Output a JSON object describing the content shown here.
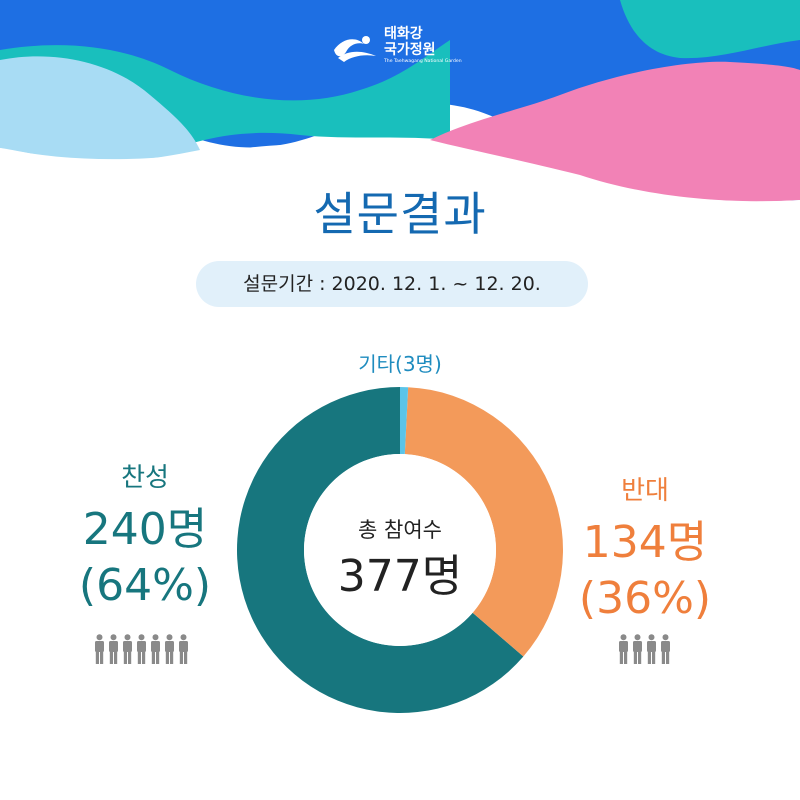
{
  "brand": {
    "name_line1": "태화강",
    "name_line2": "국가정원",
    "subtitle": "The Taehwagang National Garden"
  },
  "title": "설문결과",
  "period": "설문기간 : 2020. 12. 1. ~ 12. 20.",
  "colors": {
    "favor": "#17767e",
    "oppose": "#f39a5a",
    "other": "#5bc4e8",
    "title": "#1469b1",
    "header_blue": "#1e6fe3",
    "header_teal": "#19bfbd",
    "header_pink": "#f282b6",
    "header_lightblue": "#a8dcf4"
  },
  "chart_data": {
    "type": "pie",
    "total_caption": "총 참여수",
    "total_label": "377명",
    "total": 377,
    "slices": [
      {
        "name": "찬성",
        "value": 240,
        "count_label": "240명",
        "percent_label": "(64%)",
        "color": "#17767e",
        "icons": 7
      },
      {
        "name": "반대",
        "value": 134,
        "count_label": "134명",
        "percent_label": "(36%)",
        "color": "#f39a5a",
        "icons": 4
      },
      {
        "name": "기타",
        "value": 3,
        "label": "기타(3명)",
        "color": "#5bc4e8"
      }
    ]
  }
}
